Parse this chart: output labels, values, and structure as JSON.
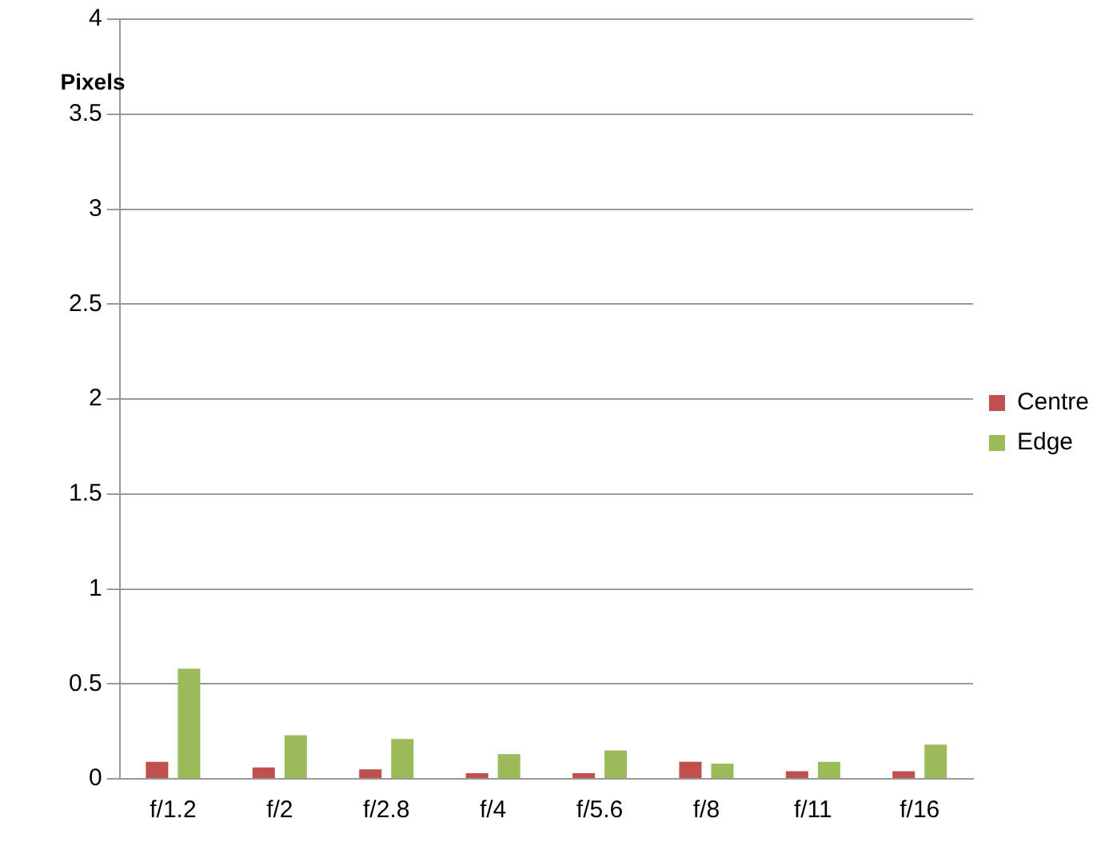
{
  "chart_data": {
    "type": "bar",
    "ylabel": "Pixels",
    "categories": [
      "f/1.2",
      "f/2",
      "f/2.8",
      "f/4",
      "f/5.6",
      "f/8",
      "f/11",
      "f/16"
    ],
    "series": [
      {
        "name": "Centre",
        "color": "#c0504d",
        "values": [
          0.09,
          0.06,
          0.05,
          0.03,
          0.03,
          0.09,
          0.04,
          0.04
        ]
      },
      {
        "name": "Edge",
        "color": "#9bbb59",
        "values": [
          0.58,
          0.23,
          0.21,
          0.13,
          0.15,
          0.08,
          0.09,
          0.18
        ]
      }
    ],
    "ylim": [
      0,
      4
    ],
    "yticks": [
      0,
      0.5,
      1,
      1.5,
      2,
      2.5,
      3,
      3.5,
      4
    ],
    "grid": "y",
    "legend": "right"
  }
}
